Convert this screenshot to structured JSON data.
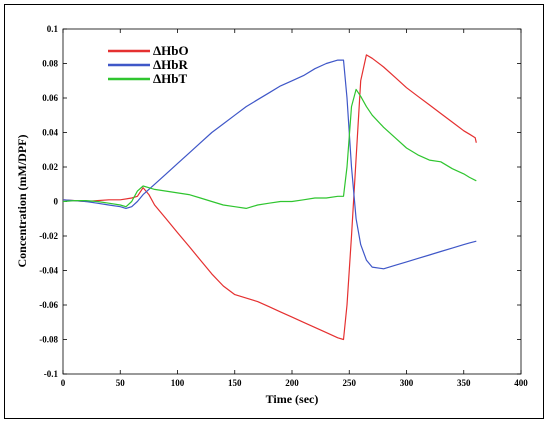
{
  "chart_data": {
    "type": "line",
    "title": "",
    "xlabel": "Time (sec)",
    "ylabel": "Concentration (mM/DPF)",
    "xlim": [
      0,
      400
    ],
    "ylim": [
      -0.1,
      0.1
    ],
    "xticks": [
      "0",
      "50",
      "100",
      "150",
      "200",
      "250",
      "300",
      "350",
      "400"
    ],
    "yticks": [
      "-0.1",
      "-0.08",
      "-0.06",
      "-0.04",
      "-0.02",
      "0",
      "0.02",
      "0.04",
      "0.06",
      "0.08",
      "0.1"
    ],
    "grid": false,
    "legend_position": "top-left",
    "series": [
      {
        "name": "ΔHbO",
        "color": "#e53030",
        "points": [
          [
            0,
            0.001
          ],
          [
            10,
            0.0005
          ],
          [
            20,
            0
          ],
          [
            30,
            0.0005
          ],
          [
            40,
            0.001
          ],
          [
            50,
            0.001
          ],
          [
            60,
            0.002
          ],
          [
            65,
            0.003
          ],
          [
            70,
            0.008
          ],
          [
            75,
            0.004
          ],
          [
            80,
            -0.002
          ],
          [
            90,
            -0.01
          ],
          [
            100,
            -0.018
          ],
          [
            110,
            -0.026
          ],
          [
            120,
            -0.034
          ],
          [
            130,
            -0.042
          ],
          [
            140,
            -0.049
          ],
          [
            150,
            -0.054
          ],
          [
            160,
            -0.056
          ],
          [
            170,
            -0.058
          ],
          [
            180,
            -0.061
          ],
          [
            190,
            -0.064
          ],
          [
            200,
            -0.067
          ],
          [
            210,
            -0.07
          ],
          [
            220,
            -0.073
          ],
          [
            230,
            -0.076
          ],
          [
            240,
            -0.079
          ],
          [
            245,
            -0.08
          ],
          [
            248,
            -0.06
          ],
          [
            252,
            -0.02
          ],
          [
            256,
            0.025
          ],
          [
            260,
            0.07
          ],
          [
            265,
            0.085
          ],
          [
            270,
            0.083
          ],
          [
            280,
            0.078
          ],
          [
            290,
            0.072
          ],
          [
            300,
            0.066
          ],
          [
            310,
            0.061
          ],
          [
            320,
            0.056
          ],
          [
            330,
            0.051
          ],
          [
            340,
            0.046
          ],
          [
            350,
            0.041
          ],
          [
            355,
            0.039
          ],
          [
            360,
            0.037
          ],
          [
            361,
            0.034
          ]
        ]
      },
      {
        "name": "ΔHbR",
        "color": "#3f57c8",
        "points": [
          [
            0,
            0.001
          ],
          [
            10,
            0.0005
          ],
          [
            20,
            0
          ],
          [
            30,
            -0.001
          ],
          [
            40,
            -0.002
          ],
          [
            50,
            -0.003
          ],
          [
            55,
            -0.004
          ],
          [
            60,
            -0.003
          ],
          [
            65,
            0
          ],
          [
            70,
            0.004
          ],
          [
            80,
            0.01
          ],
          [
            90,
            0.016
          ],
          [
            100,
            0.022
          ],
          [
            110,
            0.028
          ],
          [
            120,
            0.034
          ],
          [
            130,
            0.04
          ],
          [
            140,
            0.045
          ],
          [
            150,
            0.05
          ],
          [
            160,
            0.055
          ],
          [
            170,
            0.059
          ],
          [
            180,
            0.063
          ],
          [
            190,
            0.067
          ],
          [
            200,
            0.07
          ],
          [
            210,
            0.073
          ],
          [
            220,
            0.077
          ],
          [
            230,
            0.08
          ],
          [
            240,
            0.082
          ],
          [
            245,
            0.082
          ],
          [
            248,
            0.06
          ],
          [
            252,
            0.02
          ],
          [
            256,
            -0.01
          ],
          [
            260,
            -0.025
          ],
          [
            265,
            -0.034
          ],
          [
            270,
            -0.038
          ],
          [
            280,
            -0.039
          ],
          [
            290,
            -0.037
          ],
          [
            300,
            -0.035
          ],
          [
            310,
            -0.033
          ],
          [
            320,
            -0.031
          ],
          [
            330,
            -0.029
          ],
          [
            340,
            -0.027
          ],
          [
            350,
            -0.025
          ],
          [
            355,
            -0.024
          ],
          [
            361,
            -0.023
          ]
        ]
      },
      {
        "name": "ΔHbT",
        "color": "#2fc52f",
        "points": [
          [
            0,
            0
          ],
          [
            10,
            0.0005
          ],
          [
            20,
            0.0005
          ],
          [
            30,
            0
          ],
          [
            40,
            -0.001
          ],
          [
            50,
            -0.002
          ],
          [
            55,
            -0.003
          ],
          [
            60,
            0
          ],
          [
            65,
            0.006
          ],
          [
            70,
            0.009
          ],
          [
            75,
            0.008
          ],
          [
            80,
            0.007
          ],
          [
            90,
            0.006
          ],
          [
            100,
            0.005
          ],
          [
            110,
            0.004
          ],
          [
            120,
            0.002
          ],
          [
            130,
            0
          ],
          [
            140,
            -0.002
          ],
          [
            150,
            -0.003
          ],
          [
            160,
            -0.004
          ],
          [
            170,
            -0.002
          ],
          [
            180,
            -0.001
          ],
          [
            190,
            0
          ],
          [
            200,
            0
          ],
          [
            210,
            0.001
          ],
          [
            220,
            0.002
          ],
          [
            230,
            0.002
          ],
          [
            240,
            0.003
          ],
          [
            245,
            0.003
          ],
          [
            248,
            0.02
          ],
          [
            252,
            0.055
          ],
          [
            256,
            0.065
          ],
          [
            260,
            0.061
          ],
          [
            265,
            0.055
          ],
          [
            270,
            0.05
          ],
          [
            280,
            0.043
          ],
          [
            290,
            0.037
          ],
          [
            300,
            0.031
          ],
          [
            310,
            0.027
          ],
          [
            320,
            0.024
          ],
          [
            330,
            0.023
          ],
          [
            340,
            0.019
          ],
          [
            350,
            0.016
          ],
          [
            355,
            0.014
          ],
          [
            361,
            0.012
          ]
        ]
      }
    ]
  }
}
